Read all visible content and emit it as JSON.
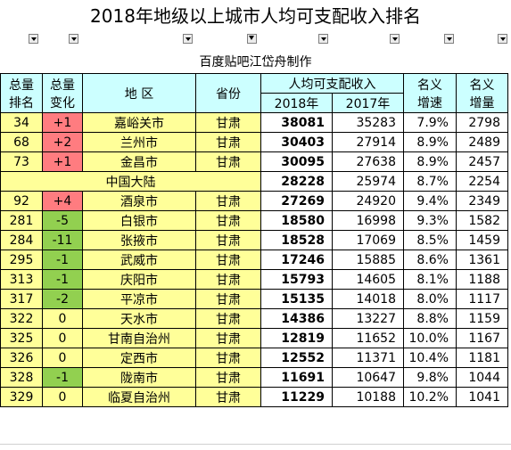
{
  "title": "2018年地级以上城市人均可支配收入排名",
  "subtitle": "百度贴吧江岱舟制作",
  "header": {
    "rank_total_1": "总量",
    "rank_total_2": "排名",
    "change_total_1": "总量",
    "change_total_2": "变化",
    "region": "地 区",
    "province": "省份",
    "income": "人均可支配收入",
    "year_2018": "2018年",
    "year_2017": "2017年",
    "nominal_growth_1": "名义",
    "nominal_growth_2": "增速",
    "nominal_increase_1": "名义",
    "nominal_increase_2": "增量"
  },
  "rows_top": [
    {
      "rank": "34",
      "change": "+1",
      "city": "嘉峪关市",
      "province": "甘肃",
      "v2018": "38081",
      "v2017": "35283",
      "growth": "7.9%",
      "increase": "2798"
    },
    {
      "rank": "68",
      "change": "+2",
      "city": "兰州市",
      "province": "甘肃",
      "v2018": "30403",
      "v2017": "27914",
      "growth": "8.9%",
      "increase": "2489"
    },
    {
      "rank": "73",
      "change": "+1",
      "city": "金昌市",
      "province": "甘肃",
      "v2018": "30095",
      "v2017": "27638",
      "growth": "8.9%",
      "increase": "2457"
    }
  ],
  "national": {
    "label": "中国大陆",
    "v2018": "28228",
    "v2017": "25974",
    "growth": "8.7%",
    "increase": "2254"
  },
  "rows_bottom": [
    {
      "rank": "92",
      "change": "+4",
      "city": "酒泉市",
      "province": "甘肃",
      "v2018": "27269",
      "v2017": "24920",
      "growth": "9.4%",
      "increase": "2349"
    },
    {
      "rank": "281",
      "change": "-5",
      "city": "白银市",
      "province": "甘肃",
      "v2018": "18580",
      "v2017": "16998",
      "growth": "9.3%",
      "increase": "1582"
    },
    {
      "rank": "284",
      "change": "-11",
      "city": "张掖市",
      "province": "甘肃",
      "v2018": "18528",
      "v2017": "17069",
      "growth": "8.5%",
      "increase": "1459"
    },
    {
      "rank": "295",
      "change": "-1",
      "city": "武威市",
      "province": "甘肃",
      "v2018": "17246",
      "v2017": "15885",
      "growth": "8.6%",
      "increase": "1361"
    },
    {
      "rank": "313",
      "change": "-1",
      "city": "庆阳市",
      "province": "甘肃",
      "v2018": "15793",
      "v2017": "14605",
      "growth": "8.1%",
      "increase": "1188"
    },
    {
      "rank": "317",
      "change": "-2",
      "city": "平凉市",
      "province": "甘肃",
      "v2018": "15135",
      "v2017": "14018",
      "growth": "8.0%",
      "increase": "1117"
    },
    {
      "rank": "322",
      "change": "0",
      "city": "天水市",
      "province": "甘肃",
      "v2018": "14386",
      "v2017": "13227",
      "growth": "8.8%",
      "increase": "1159"
    },
    {
      "rank": "325",
      "change": "0",
      "city": "甘南自治州",
      "province": "甘肃",
      "v2018": "12819",
      "v2017": "11652",
      "growth": "10.0%",
      "increase": "1167"
    },
    {
      "rank": "326",
      "change": "0",
      "city": "定西市",
      "province": "甘肃",
      "v2018": "12552",
      "v2017": "11371",
      "growth": "10.4%",
      "increase": "1181"
    },
    {
      "rank": "328",
      "change": "-1",
      "city": "陇南市",
      "province": "甘肃",
      "v2018": "11691",
      "v2017": "10647",
      "growth": "9.8%",
      "increase": "1044"
    },
    {
      "rank": "329",
      "change": "0",
      "city": "临夏自治州",
      "province": "甘肃",
      "v2018": "11229",
      "v2017": "10188",
      "growth": "10.2%",
      "increase": "1041"
    }
  ],
  "colors": {
    "header_cyan": "#ccffff",
    "row_yellow": "#ffff99",
    "change_up_red": "#ff7c80",
    "change_down_green": "#92d050"
  },
  "icons": {
    "filter_dropdown": "chevron-down-icon",
    "filter_active": "filter-funnel-icon"
  }
}
